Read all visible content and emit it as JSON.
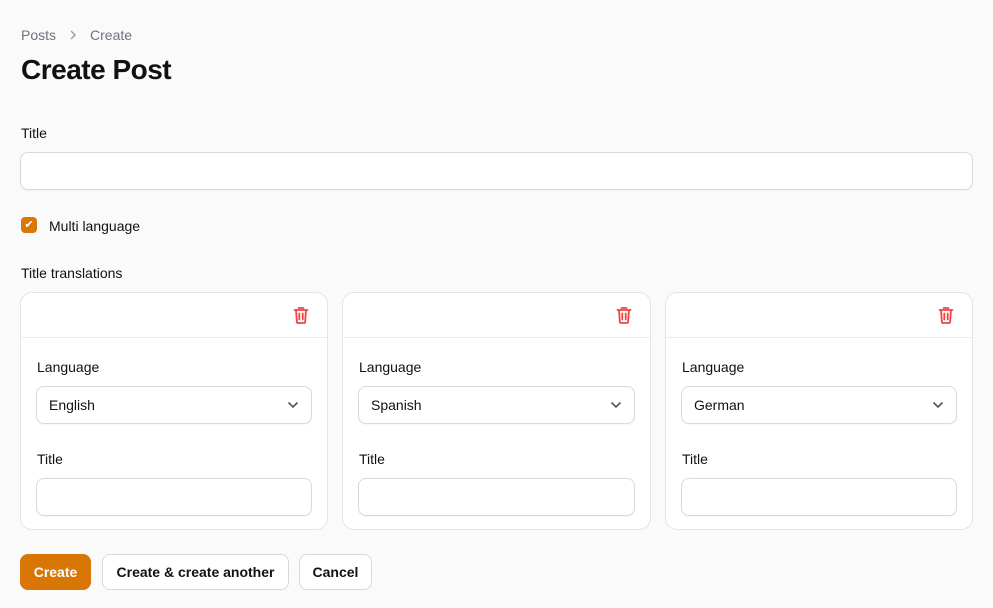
{
  "breadcrumb": [
    "Posts",
    "Create"
  ],
  "page_title": "Create Post",
  "form": {
    "title_label": "Title",
    "title_value": "",
    "multi_language_label": "Multi language",
    "multi_language_checked": true,
    "translations_label": "Title translations",
    "translations": [
      {
        "language_label": "Language",
        "language": "English",
        "title_label": "Title",
        "title_value": ""
      },
      {
        "language_label": "Language",
        "language": "Spanish",
        "title_label": "Title",
        "title_value": ""
      },
      {
        "language_label": "Language",
        "language": "German",
        "title_label": "Title",
        "title_value": ""
      }
    ]
  },
  "actions": {
    "create": "Create",
    "create_another": "Create & create another",
    "cancel": "Cancel"
  },
  "colors": {
    "accent": "#d97706",
    "danger": "#ef4444",
    "background": "#fafafa"
  },
  "icons": {
    "breadcrumb_separator": "chevron-right-icon",
    "delete": "trash-icon",
    "select": "chevron-down-icon",
    "checkbox": "check-icon"
  }
}
